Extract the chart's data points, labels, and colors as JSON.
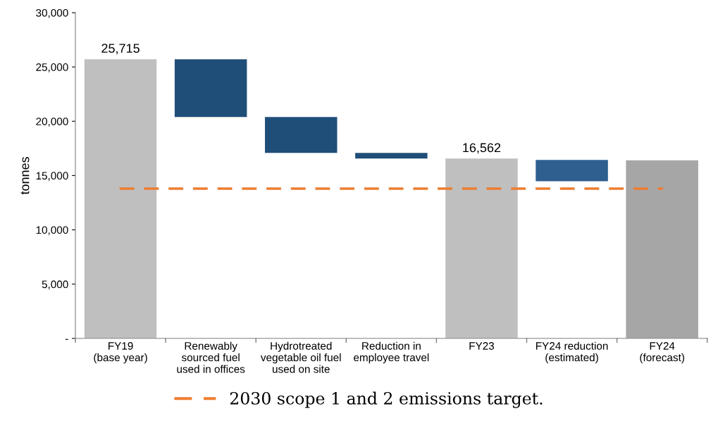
{
  "chart_data": {
    "type": "bar",
    "ylabel": "tonnes",
    "categories": [
      "FY19\n(base year)",
      "Renewably\nsourced fuel\nused in offices",
      "Hydrotreated\nvegetable oil fuel\nused on site",
      "Reduction in\nemployee travel",
      "FY23",
      "FY24 reduction\n(estimated)",
      "FY24\n(forecast)"
    ],
    "base": [
      0,
      25715,
      20390,
      17080,
      0,
      16430,
      0
    ],
    "values": [
      25715,
      -5325,
      -3310,
      -520,
      16562,
      -1950,
      16400
    ],
    "colors": [
      "#bfbfbf",
      "#1f4e79",
      "#1f4e79",
      "#1f4e79",
      "#bfbfbf",
      "#2e5f8e",
      "#a6a6a6"
    ],
    "value_labels": [
      "25,715",
      null,
      null,
      null,
      "16,562",
      null,
      null
    ],
    "ylim": [
      0,
      30000
    ],
    "yticks": [
      {
        "value": 0,
        "label": "-"
      },
      {
        "value": 5000,
        "label": "5,000"
      },
      {
        "value": 10000,
        "label": "10,000"
      },
      {
        "value": 15000,
        "label": "15,000"
      },
      {
        "value": 20000,
        "label": "20,000"
      },
      {
        "value": 25000,
        "label": "25,000"
      },
      {
        "value": 30000,
        "label": "30,000"
      }
    ],
    "ref_lines": [
      {
        "axis": "y",
        "value": 13800,
        "label": "2030 scope 1 and 2 emissions target.",
        "color": "#ed7d31",
        "line_style": "dashed"
      }
    ],
    "grid": false,
    "legend": "bottom"
  }
}
